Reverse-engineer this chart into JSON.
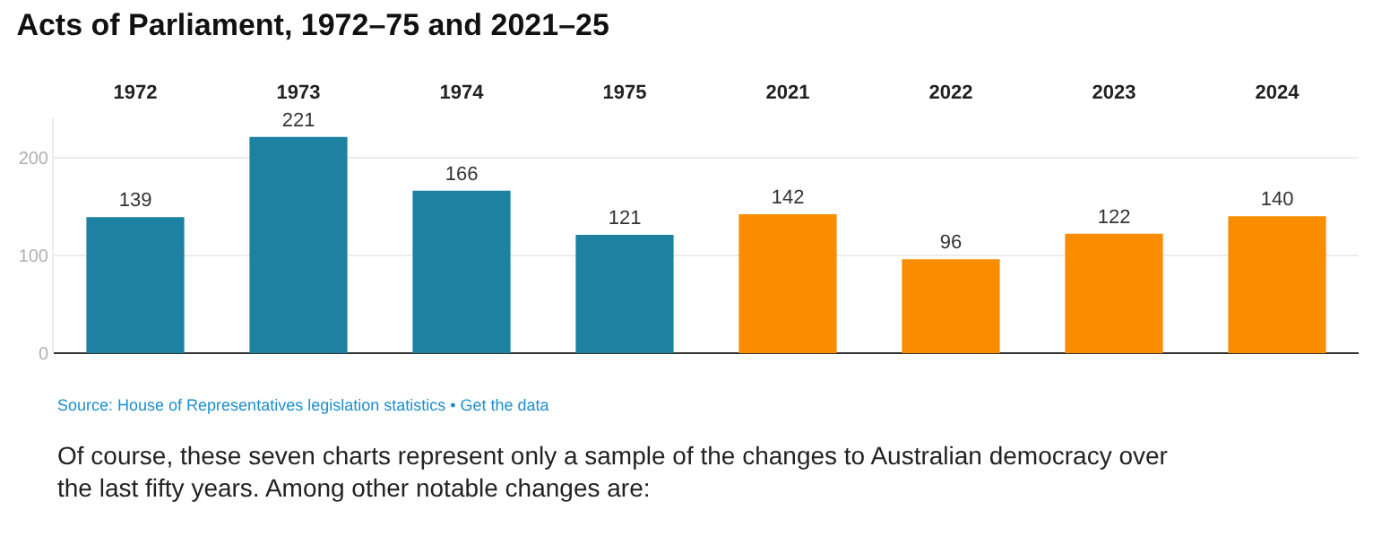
{
  "chart_data": {
    "type": "bar",
    "title": "Acts of Parliament, 1972–75 and 2021–25",
    "categories": [
      "1972",
      "1973",
      "1974",
      "1975",
      "2021",
      "2022",
      "2023",
      "2024"
    ],
    "values": [
      139,
      221,
      166,
      121,
      142,
      96,
      122,
      140
    ],
    "colors": [
      "#1d81a2",
      "#1d81a2",
      "#1d81a2",
      "#1d81a2",
      "#fa8c00",
      "#fa8c00",
      "#fa8c00",
      "#fa8c00"
    ],
    "ylim": [
      0,
      240
    ],
    "yticks": [
      0,
      100,
      200
    ],
    "grid": "y",
    "data_labels": true,
    "annotations": [
      "Source: House of Representatives legislation statistics • Get the data",
      "Of course, these seven charts represent only a sample of the changes to Australian democracy over the last fifty years. Among other notable changes are:"
    ]
  }
}
